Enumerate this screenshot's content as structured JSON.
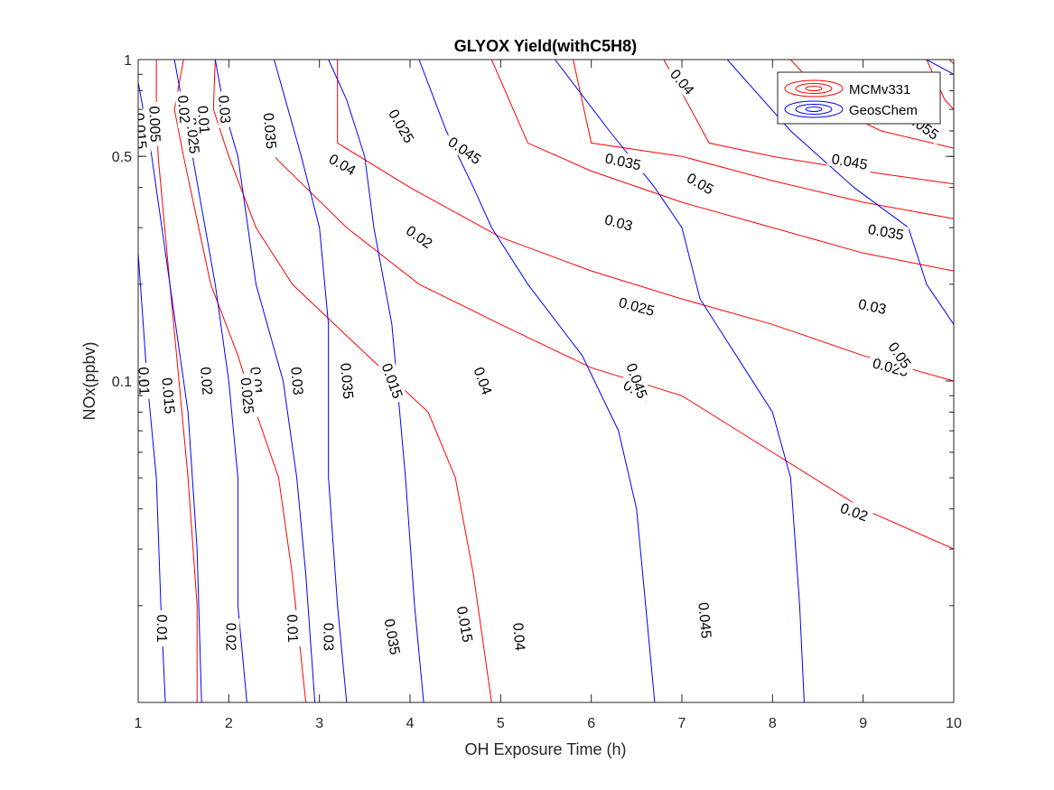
{
  "chart_data": {
    "type": "contour",
    "title": "GLYOX Yield(withC5H8)",
    "xlabel": "OH Exposure Time (h)",
    "ylabel": "NOx(ppbv)",
    "xlim": [
      1,
      10
    ],
    "ylim": [
      0.01,
      1
    ],
    "yscale": "log",
    "grid": false,
    "legend_position": "top-right",
    "x_ticks": [
      1,
      2,
      3,
      4,
      5,
      6,
      7,
      8,
      9,
      10
    ],
    "y_ticks": [
      0.1,
      0.5,
      1
    ],
    "y_tick_labels": [
      "0.1",
      "0.5",
      "1"
    ],
    "colors": {
      "MCMv331": "#ff0000",
      "GeosChem": "#0000ff",
      "axis": "#262626"
    },
    "series": [
      {
        "name": "MCMv331",
        "contours": [
          {
            "level": "0.005",
            "points": [
              [
                1.2,
                1
              ],
              [
                1.2,
                0.7
              ],
              [
                1.22,
                0.5
              ],
              [
                1.35,
                0.2
              ],
              [
                1.45,
                0.1
              ],
              [
                1.55,
                0.05
              ],
              [
                1.65,
                0.02
              ],
              [
                1.65,
                0.01
              ]
            ]
          },
          {
            "level": "0.01",
            "points": [
              [
                1.5,
                1
              ],
              [
                1.4,
                0.7
              ],
              [
                1.5,
                0.5
              ],
              [
                1.8,
                0.2
              ],
              [
                2.1,
                0.12
              ],
              [
                2.3,
                0.08
              ],
              [
                2.55,
                0.05
              ],
              [
                2.7,
                0.025
              ],
              [
                2.85,
                0.01
              ]
            ]
          },
          {
            "level": "0.015",
            "points": [
              [
                1.85,
                1
              ],
              [
                1.83,
                0.7
              ],
              [
                2.0,
                0.5
              ],
              [
                2.3,
                0.3
              ],
              [
                2.7,
                0.2
              ],
              [
                3.4,
                0.13
              ],
              [
                4.2,
                0.08
              ],
              [
                4.5,
                0.05
              ],
              [
                4.7,
                0.025
              ],
              [
                4.9,
                0.01
              ]
            ]
          },
          {
            "level": "0.02",
            "points": [
              [
                2.5,
                0.5
              ],
              [
                3.3,
                0.3
              ],
              [
                4.1,
                0.2
              ],
              [
                5.0,
                0.15
              ],
              [
                6.0,
                0.11
              ],
              [
                7.0,
                0.09
              ],
              [
                8.0,
                0.06
              ],
              [
                9.0,
                0.04
              ],
              [
                10.0,
                0.03
              ]
            ]
          },
          {
            "level": "0.025",
            "points": [
              [
                3.2,
                1
              ],
              [
                3.2,
                0.55
              ],
              [
                4.0,
                0.4
              ],
              [
                5.0,
                0.28
              ],
              [
                6.0,
                0.22
              ],
              [
                7.0,
                0.18
              ],
              [
                8.0,
                0.15
              ],
              [
                9.0,
                0.12
              ],
              [
                10.0,
                0.1
              ]
            ]
          },
          {
            "level": "0.03",
            "points": [
              [
                4.9,
                1
              ],
              [
                5.3,
                0.55
              ],
              [
                6.0,
                0.45
              ],
              [
                7.0,
                0.36
              ],
              [
                8.0,
                0.3
              ],
              [
                9.0,
                0.25
              ],
              [
                10.0,
                0.22
              ]
            ]
          },
          {
            "level": "0.035",
            "points": [
              [
                5.8,
                1
              ],
              [
                6.0,
                0.55
              ],
              [
                7.0,
                0.5
              ],
              [
                8.0,
                0.42
              ],
              [
                9.0,
                0.36
              ],
              [
                10.0,
                0.32
              ]
            ]
          },
          {
            "level": "0.04",
            "points": [
              [
                6.8,
                1
              ],
              [
                7.1,
                0.7
              ],
              [
                7.3,
                0.55
              ],
              [
                8.0,
                0.5
              ],
              [
                9.0,
                0.45
              ],
              [
                10.0,
                0.41
              ]
            ]
          },
          {
            "level": "0.045",
            "points": [
              [
                8.2,
                1
              ],
              [
                8.7,
                0.7
              ],
              [
                9.2,
                0.6
              ],
              [
                10.0,
                0.53
              ]
            ]
          },
          {
            "level": "0.05",
            "points": [
              [
                9.7,
                1
              ],
              [
                9.9,
                0.75
              ],
              [
                10.0,
                0.7
              ]
            ]
          },
          {
            "level": "0.055",
            "points": [
              [
                9.95,
                1
              ],
              [
                10.0,
                0.97
              ]
            ]
          }
        ]
      },
      {
        "name": "GeosChem",
        "contours": [
          {
            "level": "0.01",
            "points": [
              [
                1.0,
                0.25
              ],
              [
                1.1,
                0.1
              ],
              [
                1.2,
                0.05
              ],
              [
                1.25,
                0.02
              ],
              [
                1.3,
                0.01
              ]
            ]
          },
          {
            "level": "0.015",
            "points": [
              [
                1.0,
                0.85
              ],
              [
                1.15,
                0.5
              ],
              [
                1.35,
                0.2
              ],
              [
                1.55,
                0.08
              ],
              [
                1.65,
                0.03
              ],
              [
                1.7,
                0.01
              ]
            ]
          },
          {
            "level": "0.02",
            "points": [
              [
                1.4,
                1
              ],
              [
                1.5,
                0.7
              ],
              [
                1.6,
                0.5
              ],
              [
                1.85,
                0.2
              ],
              [
                2.0,
                0.1
              ],
              [
                2.1,
                0.05
              ],
              [
                2.1,
                0.02
              ],
              [
                2.2,
                0.01
              ]
            ]
          },
          {
            "level": "0.025",
            "points": [
              [
                1.85,
                1
              ],
              [
                1.95,
                0.7
              ],
              [
                2.1,
                0.5
              ],
              [
                2.3,
                0.2
              ],
              [
                2.6,
                0.1
              ],
              [
                2.75,
                0.05
              ],
              [
                2.85,
                0.025
              ],
              [
                2.95,
                0.01
              ]
            ]
          },
          {
            "level": "0.03",
            "points": [
              [
                2.5,
                1
              ],
              [
                2.8,
                0.5
              ],
              [
                3.0,
                0.3
              ],
              [
                3.1,
                0.15
              ],
              [
                3.1,
                0.05
              ],
              [
                3.2,
                0.02
              ],
              [
                3.3,
                0.01
              ]
            ]
          },
          {
            "level": "0.035",
            "points": [
              [
                3.1,
                1
              ],
              [
                3.3,
                0.75
              ],
              [
                3.5,
                0.5
              ],
              [
                3.6,
                0.3
              ],
              [
                3.8,
                0.15
              ],
              [
                3.95,
                0.05
              ],
              [
                4.05,
                0.02
              ],
              [
                4.15,
                0.01
              ]
            ]
          },
          {
            "level": "0.04",
            "points": [
              [
                4.1,
                1
              ],
              [
                4.4,
                0.6
              ],
              [
                4.7,
                0.4
              ],
              [
                4.9,
                0.3
              ],
              [
                5.3,
                0.2
              ],
              [
                5.9,
                0.12
              ],
              [
                6.3,
                0.07
              ],
              [
                6.5,
                0.04
              ],
              [
                6.6,
                0.02
              ],
              [
                6.7,
                0.01
              ]
            ]
          },
          {
            "level": "0.045",
            "points": [
              [
                5.6,
                1
              ],
              [
                6.2,
                0.6
              ],
              [
                6.7,
                0.4
              ],
              [
                7.0,
                0.3
              ],
              [
                7.2,
                0.18
              ],
              [
                7.6,
                0.12
              ],
              [
                8.0,
                0.08
              ],
              [
                8.2,
                0.05
              ],
              [
                8.3,
                0.02
              ],
              [
                8.35,
                0.01
              ]
            ]
          },
          {
            "level": "0.05",
            "points": [
              [
                7.5,
                1
              ],
              [
                8.2,
                0.6
              ],
              [
                8.9,
                0.4
              ],
              [
                9.5,
                0.3
              ],
              [
                9.7,
                0.2
              ],
              [
                10.0,
                0.15
              ]
            ]
          },
          {
            "level": "0.055",
            "points": [
              [
                9.7,
                1
              ],
              [
                10.0,
                0.9
              ]
            ]
          }
        ]
      }
    ],
    "labels": [
      {
        "text": "0.02",
        "series": "MCMv331",
        "x": 4.1,
        "y": 0.28,
        "rot": 35
      },
      {
        "text": "0.025",
        "series": "MCMv331",
        "x": 6.5,
        "y": 0.17,
        "rot": 15
      },
      {
        "text": "0.03",
        "series": "MCMv331",
        "x": 6.3,
        "y": 0.31,
        "rot": 15
      },
      {
        "text": "0.035",
        "series": "MCMv331",
        "x": 6.35,
        "y": 0.48,
        "rot": 12
      },
      {
        "text": "0.025",
        "series": "MCMv331",
        "x": 3.9,
        "y": 0.62,
        "rot": 60
      },
      {
        "text": "0.04",
        "series": "MCMv331",
        "x": 7.0,
        "y": 0.85,
        "rot": 50
      },
      {
        "text": "0.045",
        "series": "MCMv331",
        "x": 8.85,
        "y": 0.48,
        "rot": 10
      },
      {
        "text": "0.035",
        "series": "MCMv331",
        "x": 9.25,
        "y": 0.29,
        "rot": 10
      },
      {
        "text": "0.03",
        "series": "MCMv331",
        "x": 9.1,
        "y": 0.17,
        "rot": 12
      },
      {
        "text": "0.025",
        "series": "MCMv331",
        "x": 9.3,
        "y": 0.11,
        "rot": 15
      },
      {
        "text": "0.02",
        "series": "MCMv331",
        "x": 6.5,
        "y": 0.093,
        "rot": 30
      },
      {
        "text": "0.02",
        "series": "MCMv331",
        "x": 8.9,
        "y": 0.039,
        "rot": 20
      },
      {
        "text": "0.015",
        "series": "MCMv331",
        "x": 3.8,
        "y": 0.1,
        "rot": 70
      },
      {
        "text": "0.015",
        "series": "MCMv331",
        "x": 4.6,
        "y": 0.0175,
        "rot": 80
      },
      {
        "text": "0.01",
        "series": "MCMv331",
        "x": 2.3,
        "y": 0.1,
        "rot": 85
      },
      {
        "text": "0.01",
        "series": "MCMv331",
        "x": 2.7,
        "y": 0.017,
        "rot": 88
      },
      {
        "text": "0.025",
        "series": "MCMv331",
        "x": 1.6,
        "y": 0.58,
        "rot": 85
      },
      {
        "text": "0.015",
        "series": "MCMv331",
        "x": 2.45,
        "y": 0.58,
        "rot": 88
      },
      {
        "text": "0.005",
        "series": "MCMv331",
        "x": 1.18,
        "y": 0.63,
        "rot": 88
      },
      {
        "text": "0.045",
        "series": "GeosChem",
        "x": 4.6,
        "y": 0.52,
        "rot": 35
      },
      {
        "text": "0.05",
        "series": "GeosChem",
        "x": 7.2,
        "y": 0.41,
        "rot": 30
      },
      {
        "text": "0.055",
        "series": "GeosChem",
        "x": 9.65,
        "y": 0.62,
        "rot": 35
      },
      {
        "text": "0.04",
        "series": "GeosChem",
        "x": 3.25,
        "y": 0.47,
        "rot": 30
      },
      {
        "text": "0.04",
        "series": "GeosChem",
        "x": 4.8,
        "y": 0.1,
        "rot": 70
      },
      {
        "text": "0.045",
        "series": "GeosChem",
        "x": 6.5,
        "y": 0.1,
        "rot": 70
      },
      {
        "text": "0.05",
        "series": "GeosChem",
        "x": 9.4,
        "y": 0.12,
        "rot": 55
      },
      {
        "text": "0.035",
        "series": "GeosChem",
        "x": 3.3,
        "y": 0.1,
        "rot": 85
      },
      {
        "text": "0.03",
        "series": "GeosChem",
        "x": 2.75,
        "y": 0.1,
        "rot": 85
      },
      {
        "text": "0.025",
        "series": "GeosChem",
        "x": 2.2,
        "y": 0.09,
        "rot": 85
      },
      {
        "text": "0.02",
        "series": "GeosChem",
        "x": 1.75,
        "y": 0.1,
        "rot": 85
      },
      {
        "text": "0.015",
        "series": "GeosChem",
        "x": 1.33,
        "y": 0.09,
        "rot": 85
      },
      {
        "text": "0.01",
        "series": "GeosChem",
        "x": 1.06,
        "y": 0.1,
        "rot": 88
      },
      {
        "text": "0.01",
        "series": "GeosChem",
        "x": 1.26,
        "y": 0.017,
        "rot": 90
      },
      {
        "text": "0.02",
        "series": "GeosChem",
        "x": 2.02,
        "y": 0.016,
        "rot": 90
      },
      {
        "text": "0.03",
        "series": "GeosChem",
        "x": 3.1,
        "y": 0.016,
        "rot": 90
      },
      {
        "text": "0.035",
        "series": "GeosChem",
        "x": 3.8,
        "y": 0.016,
        "rot": 80
      },
      {
        "text": "0.04",
        "series": "GeosChem",
        "x": 5.2,
        "y": 0.016,
        "rot": 85
      },
      {
        "text": "0.045",
        "series": "GeosChem",
        "x": 7.25,
        "y": 0.018,
        "rot": 85
      },
      {
        "text": "0.02",
        "series": "GeosChem",
        "x": 1.5,
        "y": 0.7,
        "rot": 85
      },
      {
        "text": "0.03",
        "series": "GeosChem",
        "x": 1.95,
        "y": 0.7,
        "rot": 85
      },
      {
        "text": "0.035",
        "series": "GeosChem",
        "x": 2.45,
        "y": 0.6,
        "rot": 85
      },
      {
        "text": "0.015",
        "series": "GeosChem",
        "x": 1.02,
        "y": 0.6,
        "rot": 85
      },
      {
        "text": "0.01",
        "series": "GeosChem",
        "x": 1.72,
        "y": 0.65,
        "rot": 85
      }
    ]
  }
}
